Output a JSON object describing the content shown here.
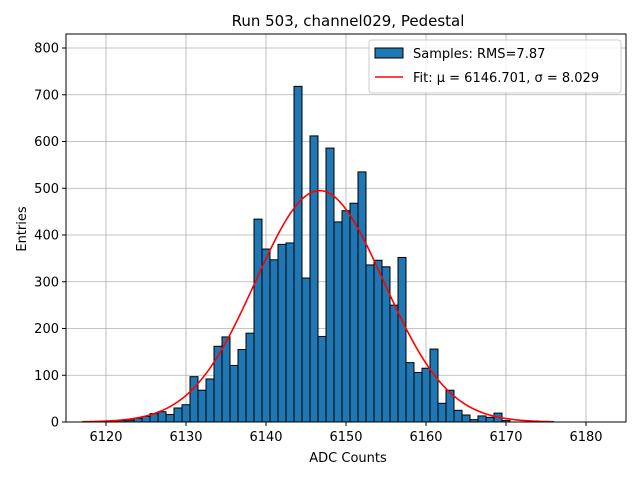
{
  "chart_data": {
    "type": "bar",
    "title": "Run 503, channel029, Pedestal",
    "xlabel": "ADC Counts",
    "ylabel": "Entries",
    "xlim": [
      6115,
      6185
    ],
    "ylim": [
      0,
      830
    ],
    "xticks": [
      6120,
      6130,
      6140,
      6150,
      6160,
      6170,
      6180
    ],
    "yticks": [
      0,
      100,
      200,
      300,
      400,
      500,
      600,
      700,
      800
    ],
    "grid": true,
    "legend_position": "top-right",
    "bin_width": 1,
    "colors": {
      "bars": "#1f77b4",
      "fit": "#ff0000"
    },
    "histogram": {
      "name": "Samples: RMS=7.87",
      "bins": [
        6119,
        6120,
        6121,
        6122,
        6123,
        6124,
        6125,
        6126,
        6127,
        6128,
        6129,
        6130,
        6131,
        6132,
        6133,
        6134,
        6135,
        6136,
        6137,
        6138,
        6139,
        6140,
        6141,
        6142,
        6143,
        6144,
        6145,
        6146,
        6147,
        6148,
        6149,
        6150,
        6151,
        6152,
        6153,
        6154,
        6155,
        6156,
        6157,
        6158,
        6159,
        6160,
        6161,
        6162,
        6163,
        6164,
        6165,
        6166,
        6167,
        6168,
        6169,
        6170
      ],
      "counts": [
        1,
        2,
        2,
        3,
        4,
        8,
        12,
        18,
        22,
        16,
        30,
        37,
        97,
        68,
        92,
        162,
        182,
        121,
        155,
        190,
        434,
        370,
        347,
        380,
        383,
        718,
        308,
        612,
        183,
        586,
        428,
        452,
        468,
        535,
        336,
        346,
        332,
        250,
        352,
        127,
        106,
        115,
        156,
        40,
        68,
        25,
        15,
        5,
        13,
        10,
        19,
        3
      ]
    },
    "fit": {
      "name": "Fit: μ = 6146.701, σ = 8.029",
      "mu": 6146.701,
      "sigma": 8.029,
      "amplitude": 495,
      "x_range": [
        6117,
        6176
      ]
    }
  }
}
